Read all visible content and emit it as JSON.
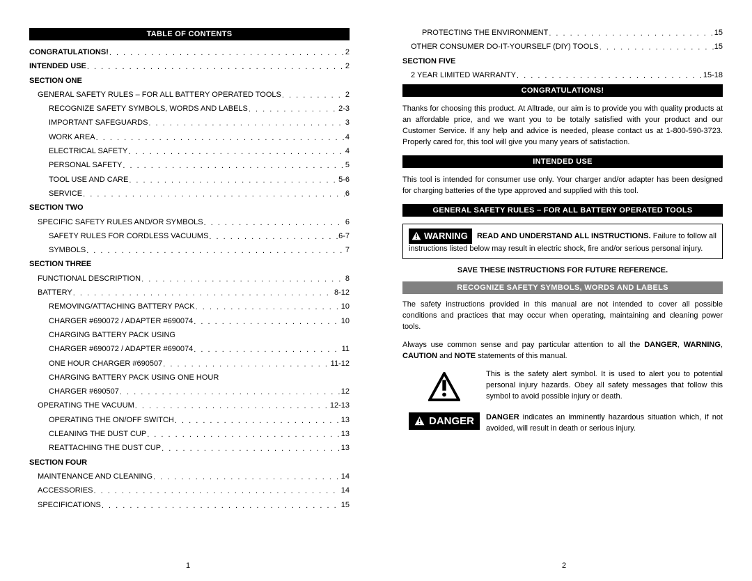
{
  "left": {
    "header": "TABLE OF CONTENTS",
    "pageNum": "1",
    "rows": [
      {
        "label": "CONGRATULATIONS!",
        "page": "2",
        "bold": true,
        "indent": 0
      },
      {
        "label": "INTENDED USE",
        "page": "2",
        "bold": true,
        "indent": 0
      },
      {
        "label": "SECTION ONE",
        "page": "",
        "bold": true,
        "indent": 0,
        "noDots": true
      },
      {
        "label": "GENERAL SAFETY RULES – FOR ALL BATTERY OPERATED TOOLS",
        "page": "2",
        "indent": 1
      },
      {
        "label": "RECOGNIZE SAFETY SYMBOLS, WORDS AND LABELS",
        "page": "2-3",
        "indent": 2
      },
      {
        "label": "IMPORTANT SAFEGUARDS",
        "page": "3",
        "indent": 2
      },
      {
        "label": "WORK AREA",
        "page": "4",
        "indent": 2
      },
      {
        "label": "ELECTRICAL SAFETY",
        "page": "4",
        "indent": 2
      },
      {
        "label": "PERSONAL SAFETY",
        "page": "5",
        "indent": 2
      },
      {
        "label": "TOOL USE AND CARE",
        "page": "5-6",
        "indent": 2
      },
      {
        "label": "SERVICE",
        "page": "6",
        "indent": 2
      },
      {
        "label": "SECTION TWO",
        "page": "",
        "bold": true,
        "indent": 0,
        "noDots": true
      },
      {
        "label": "SPECIFIC SAFETY RULES AND/OR SYMBOLS",
        "page": "6",
        "indent": 1
      },
      {
        "label": "SAFETY RULES FOR CORDLESS VACUUMS",
        "page": "6-7",
        "indent": 2
      },
      {
        "label": "SYMBOLS",
        "page": "7",
        "indent": 2
      },
      {
        "label": "SECTION THREE",
        "page": "",
        "bold": true,
        "indent": 0,
        "noDots": true
      },
      {
        "label": "FUNCTIONAL DESCRIPTION",
        "page": "8",
        "indent": 1
      },
      {
        "label": "BATTERY",
        "page": "8-12",
        "indent": 1
      },
      {
        "label": "REMOVING/ATTACHING BATTERY PACK",
        "page": "10",
        "indent": 2
      },
      {
        "label": "CHARGER #690072 / ADAPTER #690074",
        "page": "10",
        "indent": 2
      },
      {
        "label": "CHARGING BATTERY PACK USING",
        "page": "",
        "indent": 2,
        "noDots": true
      },
      {
        "label": "CHARGER #690072 / ADAPTER #690074",
        "page": "11",
        "indent": 2
      },
      {
        "label": "ONE HOUR CHARGER #690507",
        "page": "11-12",
        "indent": 2
      },
      {
        "label": "CHARGING BATTERY PACK USING ONE HOUR",
        "page": "",
        "indent": 2,
        "noDots": true
      },
      {
        "label": "CHARGER #690507",
        "page": "12",
        "indent": 2
      },
      {
        "label": "OPERATING THE VACUUM",
        "page": "12-13",
        "indent": 1
      },
      {
        "label": "OPERATING THE ON/OFF SWITCH",
        "page": "13",
        "indent": 2
      },
      {
        "label": "CLEANING THE DUST CUP",
        "page": "13",
        "indent": 2
      },
      {
        "label": "REATTACHING THE DUST CUP",
        "page": "13",
        "indent": 2
      },
      {
        "label": "SECTION FOUR",
        "page": "",
        "bold": true,
        "indent": 0,
        "noDots": true
      },
      {
        "label": "MAINTENANCE AND CLEANING",
        "page": "14",
        "indent": 1
      },
      {
        "label": "ACCESSORIES",
        "page": "14",
        "indent": 1
      },
      {
        "label": "SPECIFICATIONS",
        "page": "15",
        "indent": 1
      }
    ]
  },
  "right": {
    "pageNum": "2",
    "tocRows": [
      {
        "label": "PROTECTING THE ENVIRONMENT",
        "page": "15",
        "indent": 2
      },
      {
        "label": "OTHER CONSUMER DO-IT-YOURSELF (DIY) TOOLS",
        "page": "15",
        "indent": 1
      },
      {
        "label": "SECTION FIVE",
        "page": "",
        "bold": true,
        "indent": 0,
        "noDots": true
      },
      {
        "label": "2 YEAR LIMITED WARRANTY",
        "page": "15-18",
        "indent": 1
      }
    ],
    "congratsHeader": "CONGRATULATIONS!",
    "congratsText": "Thanks for choosing this product. At Alltrade, our aim is to provide you with quality products at an affordable price, and we want you to be totally satisfied with your product and our Customer Service. If any help and advice is needed, please contact us at 1-800-590-3723. Properly cared for, this tool will give you many years of satisfaction.",
    "intendedHeader": "INTENDED USE",
    "intendedText": "This tool is intended for consumer use only. Your charger and/or adapter has been designed for charging batteries of the type approved and supplied with this tool.",
    "safetyHeader": "GENERAL SAFETY RULES – FOR ALL BATTERY OPERATED TOOLS",
    "warningLabel": "WARNING",
    "warningBold": "READ AND UNDERSTAND ALL INSTRUCTIONS.",
    "warningText": " Failure to follow all instructions listed below may result in electric shock, fire and/or serious personal injury.",
    "saveInstr": "SAVE THESE INSTRUCTIONS FOR FUTURE REFERENCE.",
    "recognizeHeader": "RECOGNIZE SAFETY SYMBOLS, WORDS AND LABELS",
    "safetyPara1": "The safety instructions provided in this manual are not intended to cover all possible conditions and practices that may occur when operating, maintaining and cleaning power tools.",
    "safetyPara2a": "Always use common sense and pay particular attention to all the ",
    "danger": "DANGER",
    "warning": "WARNING",
    "caution": "CAUTION",
    "note": "NOTE",
    "safetyPara2b": " statements of this manual.",
    "alertText": "This is the safety alert symbol. It is used to alert you to potential personal injury hazards. Obey all safety messages that follow this symbol to avoid possible injury or death.",
    "dangerBadge": "DANGER",
    "dangerText": " indicates an imminently hazardous situation which, if not avoided, will result in death or serious injury."
  }
}
